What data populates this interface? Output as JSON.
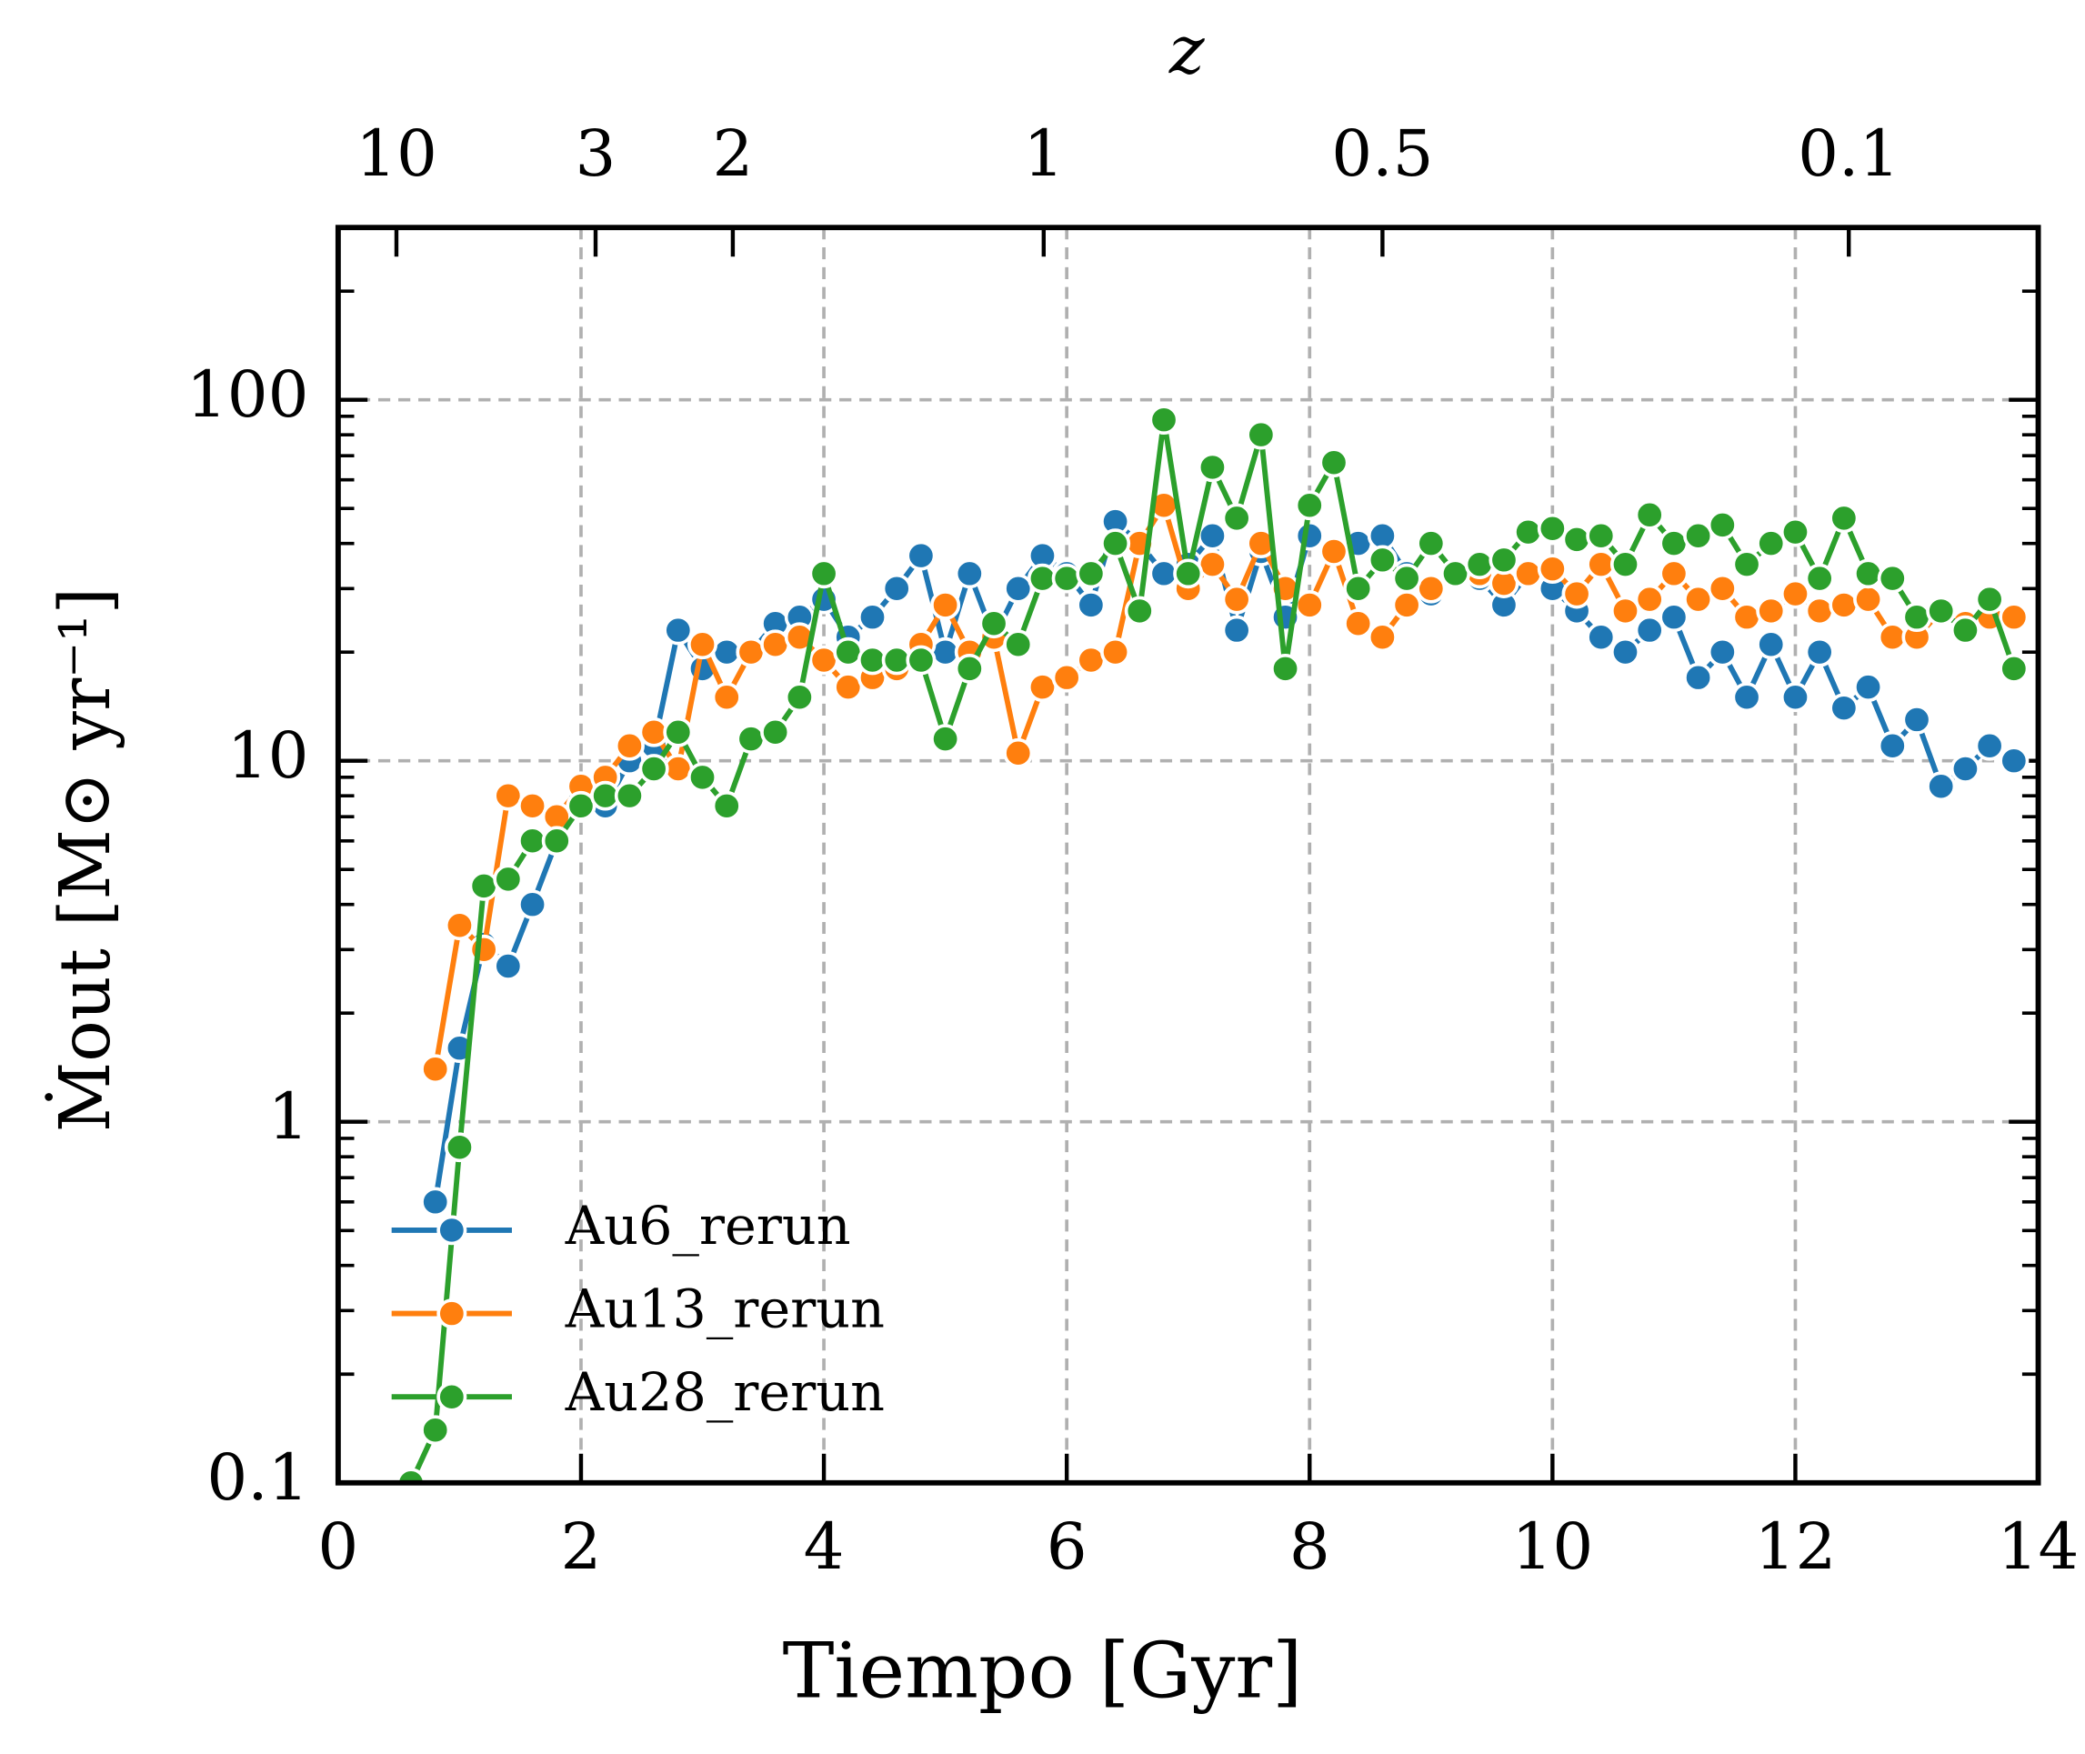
{
  "chart_data": {
    "type": "line",
    "xlabel": "Tiempo [Gyr]",
    "ylabel": "Ṁout [M⊙ yr⁻¹]",
    "x2label": "z",
    "xlim": [
      0,
      14
    ],
    "xticks": [
      0,
      2,
      4,
      6,
      8,
      10,
      12,
      14
    ],
    "ylim": [
      0.1,
      300
    ],
    "yticks": [
      0.1,
      1,
      10,
      100
    ],
    "log_y": true,
    "grid": true,
    "legend": "lower left",
    "x2ticks": [
      {
        "value": 0.48,
        "label": "10"
      },
      {
        "value": 2.12,
        "label": "3"
      },
      {
        "value": 3.25,
        "label": "2"
      },
      {
        "value": 5.81,
        "label": "1"
      },
      {
        "value": 8.6,
        "label": "0.5"
      },
      {
        "value": 12.44,
        "label": "0.1"
      }
    ],
    "x": [
      0.6,
      0.8,
      1.0,
      1.2,
      1.4,
      1.6,
      1.8,
      2.0,
      2.2,
      2.4,
      2.6,
      2.8,
      3.0,
      3.2,
      3.4,
      3.6,
      3.8,
      4.0,
      4.2,
      4.4,
      4.6,
      4.8,
      5.0,
      5.2,
      5.4,
      5.6,
      5.8,
      6.0,
      6.2,
      6.4,
      6.6,
      6.8,
      7.0,
      7.2,
      7.4,
      7.6,
      7.8,
      8.0,
      8.2,
      8.4,
      8.6,
      8.8,
      9.0,
      9.2,
      9.4,
      9.6,
      9.8,
      10.0,
      10.2,
      10.4,
      10.6,
      10.8,
      11.0,
      11.2,
      11.4,
      11.6,
      11.8,
      12.0,
      12.2,
      12.4,
      12.6,
      12.8,
      13.0,
      13.2,
      13.4,
      13.6,
      13.8
    ],
    "series": [
      {
        "name": "Au6_rerun",
        "color": "#1f77b4",
        "values": [
          null,
          0.6,
          1.6,
          3.1,
          2.7,
          4.0,
          6,
          8,
          7.5,
          10,
          11,
          23,
          18,
          20,
          20,
          24,
          25,
          28,
          22,
          25,
          30,
          37,
          20,
          33,
          22,
          30,
          37,
          33,
          27,
          46,
          40,
          33,
          35,
          42,
          23,
          38,
          25,
          42,
          38,
          40,
          42,
          33,
          29,
          33,
          32,
          27,
          33,
          30,
          26,
          22,
          20,
          23,
          25,
          17,
          20,
          15,
          21,
          15,
          20,
          14,
          16,
          11,
          13,
          8.5,
          9.5,
          11,
          10
        ]
      },
      {
        "name": "Au13_rerun",
        "color": "#ff7f0e",
        "values": [
          null,
          1.4,
          3.5,
          3.0,
          8,
          7.5,
          7,
          8.5,
          9,
          11,
          12,
          9.5,
          21,
          15,
          20,
          21,
          22,
          19,
          16,
          17,
          18,
          21,
          27,
          20,
          22,
          10.5,
          16,
          17,
          19,
          20,
          40,
          51,
          30,
          35,
          28,
          40,
          30,
          27,
          38,
          24,
          22,
          27,
          30,
          33,
          33,
          31,
          33,
          34,
          29,
          35,
          26,
          28,
          33,
          28,
          30,
          25,
          26,
          29,
          26,
          27,
          28,
          22,
          22,
          26,
          24,
          25,
          25
        ]
      },
      {
        "name": "Au28_rerun",
        "color": "#2ca02c",
        "values": [
          0.1,
          0.14,
          0.85,
          4.5,
          4.7,
          6,
          6,
          7.5,
          8,
          8,
          9.5,
          12,
          9,
          7.5,
          11.5,
          12,
          15,
          33,
          20,
          19,
          19,
          19,
          11.5,
          18,
          24,
          21,
          32,
          32,
          33,
          40,
          26,
          88,
          33,
          65,
          47,
          80,
          18,
          51,
          67,
          30,
          36,
          32,
          40,
          33,
          35,
          36,
          43,
          44,
          41,
          42,
          35,
          48,
          40,
          42,
          45,
          35,
          40,
          43,
          32,
          47,
          33,
          32,
          25,
          26,
          23,
          28,
          18
        ]
      }
    ]
  }
}
